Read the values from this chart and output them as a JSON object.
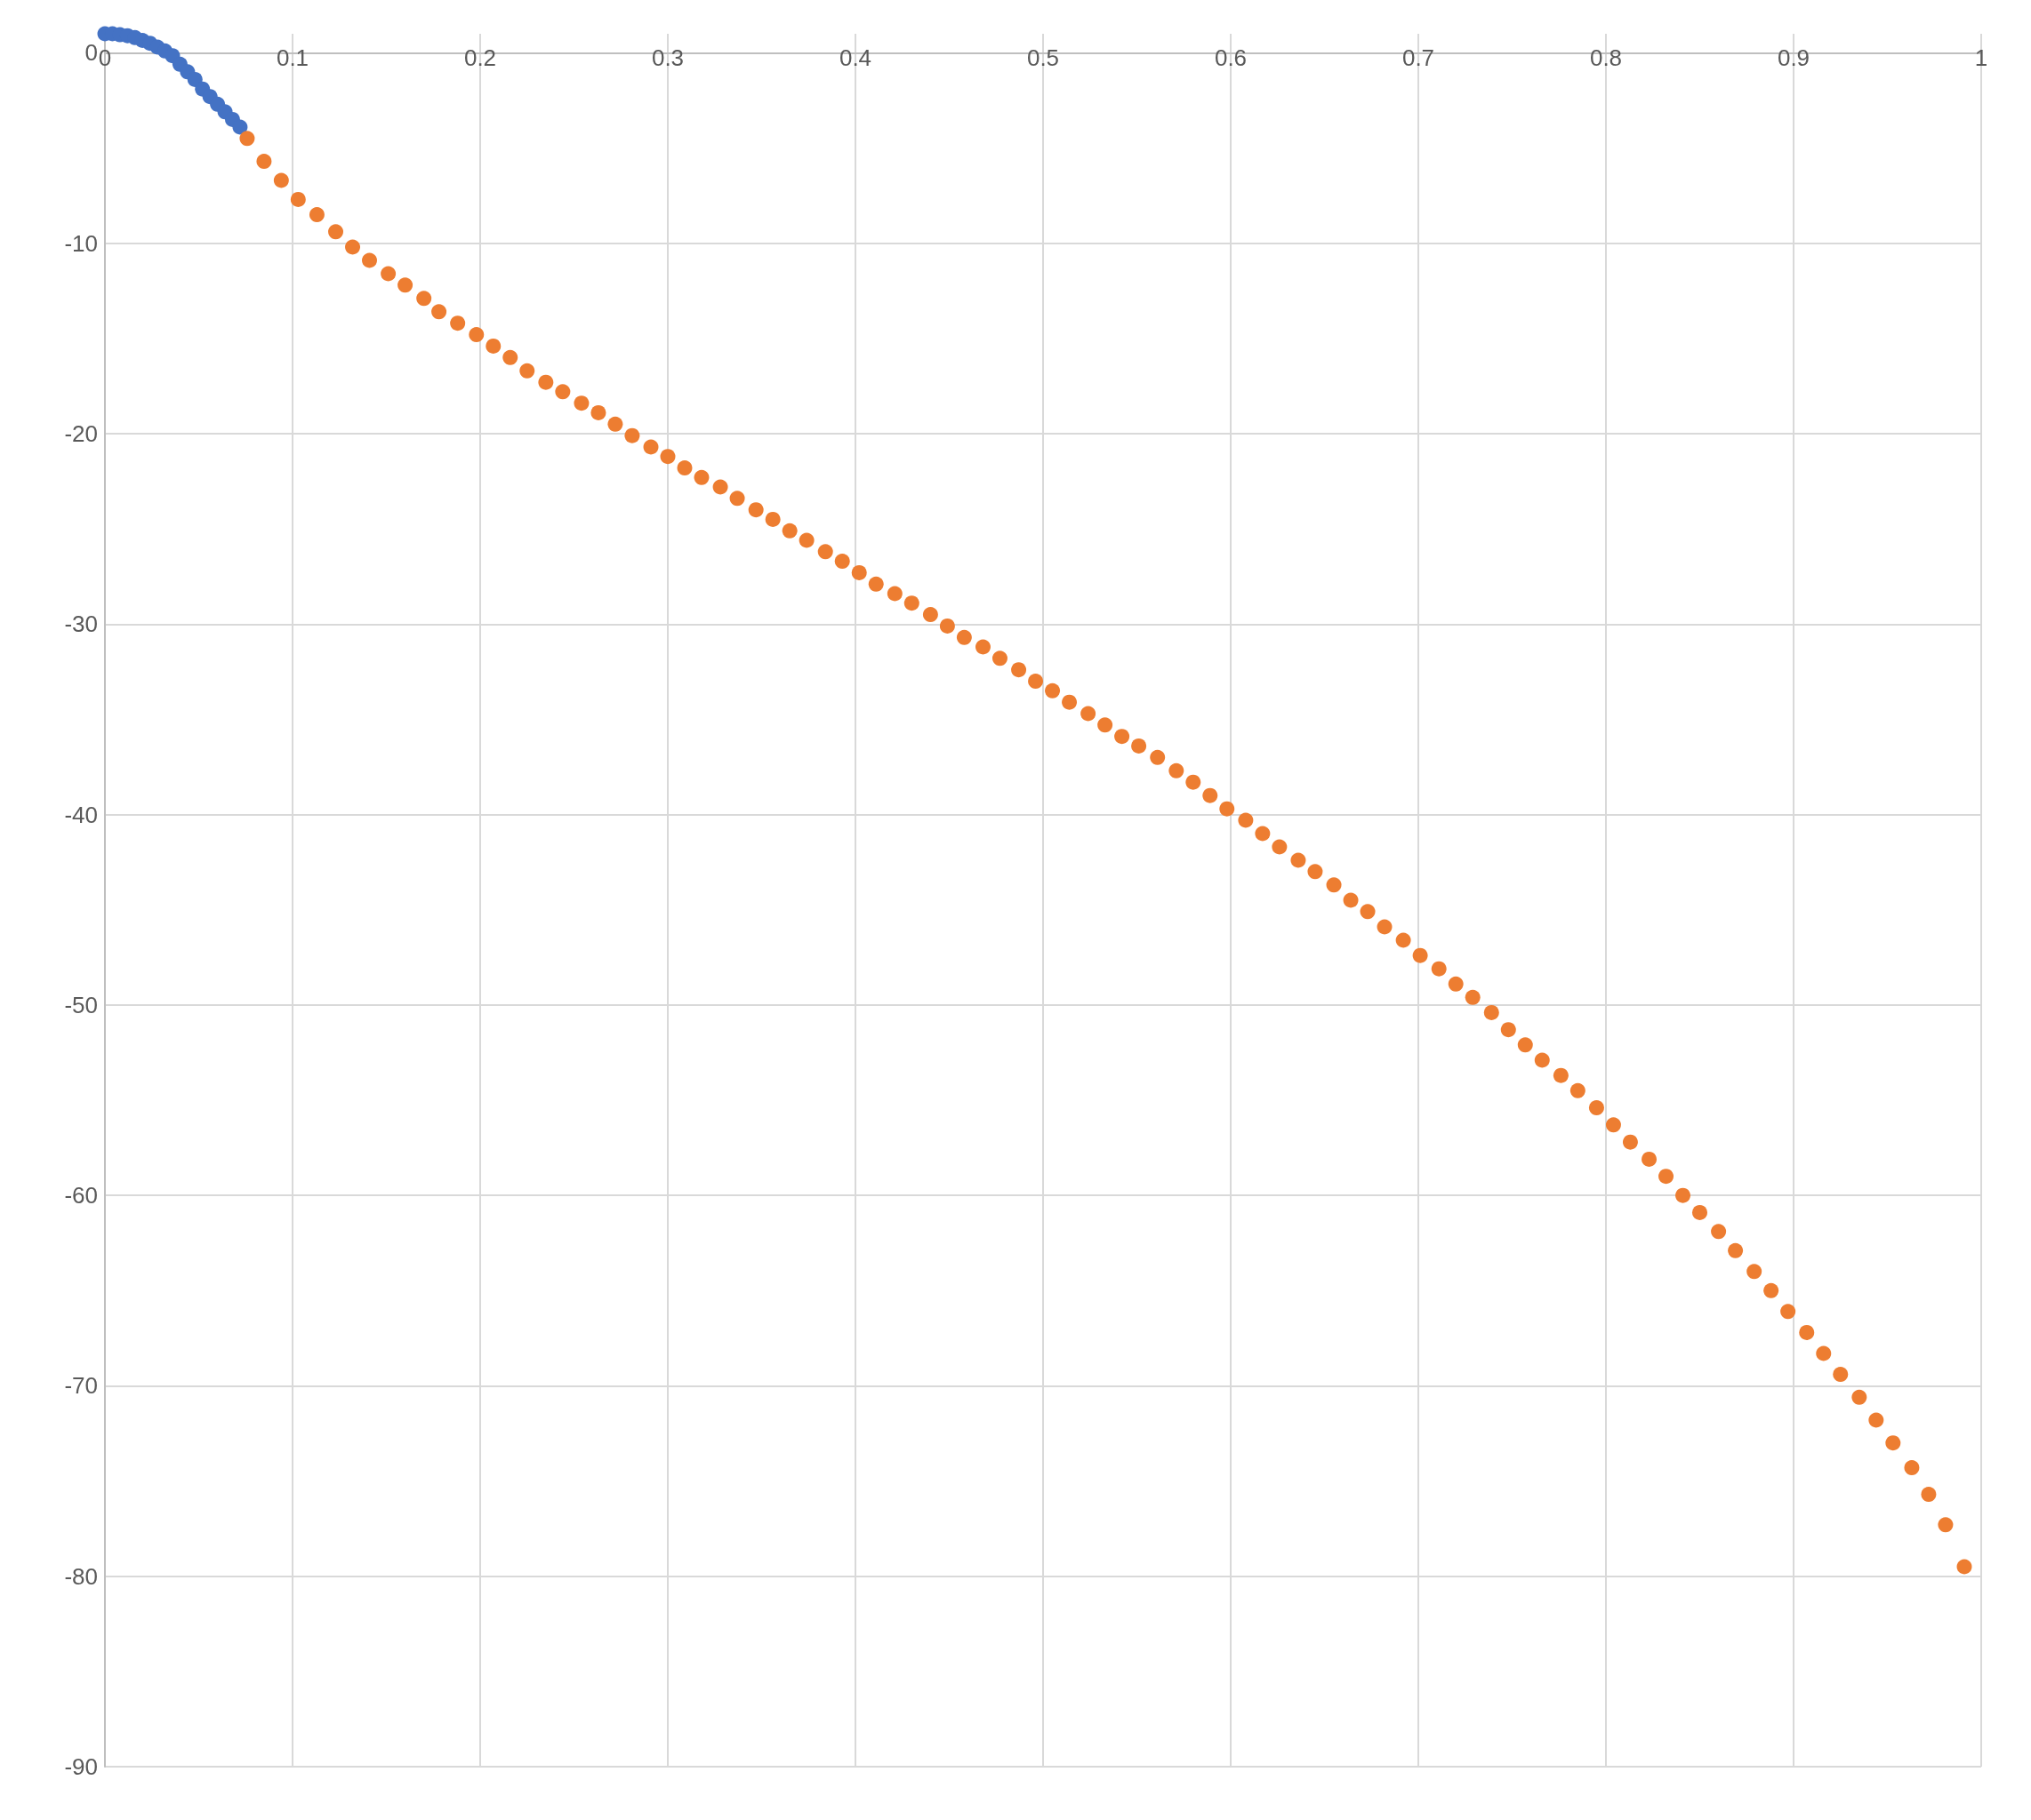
{
  "chart_data": {
    "type": "scatter",
    "xlim": [
      0,
      1
    ],
    "ylim": [
      -90,
      1
    ],
    "xticks": [
      0,
      0.1,
      0.2,
      0.3,
      0.4,
      0.5,
      0.6,
      0.7,
      0.8,
      0.9,
      1
    ],
    "yticks": [
      -90,
      -80,
      -70,
      -60,
      -50,
      -40,
      -30,
      -20,
      -10,
      0
    ],
    "grid": true,
    "marker": "circle",
    "series": [
      {
        "color": "#4472c4",
        "x": [
          0,
          0.004,
          0.008,
          0.012,
          0.016,
          0.02,
          0.024,
          0.028,
          0.032,
          0.036,
          0.04,
          0.044,
          0.048,
          0.052,
          0.056,
          0.06,
          0.064,
          0.068,
          0.072
        ],
        "values": [
          1,
          1,
          0.95,
          0.9,
          0.8,
          0.65,
          0.5,
          0.3,
          0.1,
          -0.15,
          -0.6,
          -1,
          -1.4,
          -1.9,
          -2.3,
          -2.7,
          -3.1,
          -3.5,
          -3.9
        ]
      },
      {
        "color": "#ed7d31",
        "x": [
          0.0758,
          0.0848,
          0.094,
          0.103,
          0.113,
          0.123,
          0.132,
          0.141,
          0.151,
          0.16,
          0.17,
          0.178,
          0.188,
          0.198,
          0.207,
          0.216,
          0.225,
          0.235,
          0.244,
          0.254,
          0.263,
          0.272,
          0.281,
          0.291,
          0.3,
          0.309,
          0.318,
          0.328,
          0.337,
          0.347,
          0.356,
          0.365,
          0.374,
          0.384,
          0.393,
          0.402,
          0.411,
          0.421,
          0.43,
          0.44,
          0.449,
          0.458,
          0.468,
          0.477,
          0.487,
          0.496,
          0.505,
          0.514,
          0.524,
          0.533,
          0.542,
          0.551,
          0.561,
          0.571,
          0.58,
          0.589,
          0.598,
          0.608,
          0.617,
          0.626,
          0.636,
          0.645,
          0.655,
          0.664,
          0.673,
          0.682,
          0.692,
          0.701,
          0.711,
          0.72,
          0.729,
          0.739,
          0.748,
          0.757,
          0.766,
          0.776,
          0.785,
          0.795,
          0.804,
          0.813,
          0.823,
          0.832,
          0.841,
          0.85,
          0.86,
          0.869,
          0.879,
          0.888,
          0.897,
          0.907,
          0.916,
          0.925,
          0.935,
          0.944,
          0.953,
          0.963,
          0.972,
          0.981,
          0.991
        ],
        "values": [
          -4.5,
          -5.7,
          -6.7,
          -7.7,
          -8.5,
          -9.4,
          -10.2,
          -10.9,
          -11.6,
          -12.2,
          -12.9,
          -13.6,
          -14.2,
          -14.8,
          -15.4,
          -16,
          -16.7,
          -17.3,
          -17.8,
          -18.4,
          -18.9,
          -19.5,
          -20.1,
          -20.7,
          -21.2,
          -21.8,
          -22.3,
          -22.8,
          -23.4,
          -24,
          -24.5,
          -25.1,
          -25.6,
          -26.2,
          -26.7,
          -27.3,
          -27.9,
          -28.4,
          -28.9,
          -29.5,
          -30.1,
          -30.7,
          -31.2,
          -31.8,
          -32.4,
          -33,
          -33.5,
          -34.1,
          -34.7,
          -35.3,
          -35.9,
          -36.4,
          -37,
          -37.7,
          -38.3,
          -39,
          -39.7,
          -40.3,
          -41,
          -41.7,
          -42.4,
          -43,
          -43.7,
          -44.5,
          -45.1,
          -45.9,
          -46.6,
          -47.4,
          -48.1,
          -48.9,
          -49.6,
          -50.4,
          -51.3,
          -52.1,
          -52.9,
          -53.7,
          -54.5,
          -55.4,
          -56.3,
          -57.2,
          -58.1,
          -59,
          -60,
          -60.9,
          -61.9,
          -62.9,
          -64,
          -65,
          -66.1,
          -67.2,
          -68.3,
          -69.4,
          -70.6,
          -71.8,
          -73,
          -74.3,
          -75.7,
          -77.3,
          -79.5
        ]
      }
    ]
  }
}
